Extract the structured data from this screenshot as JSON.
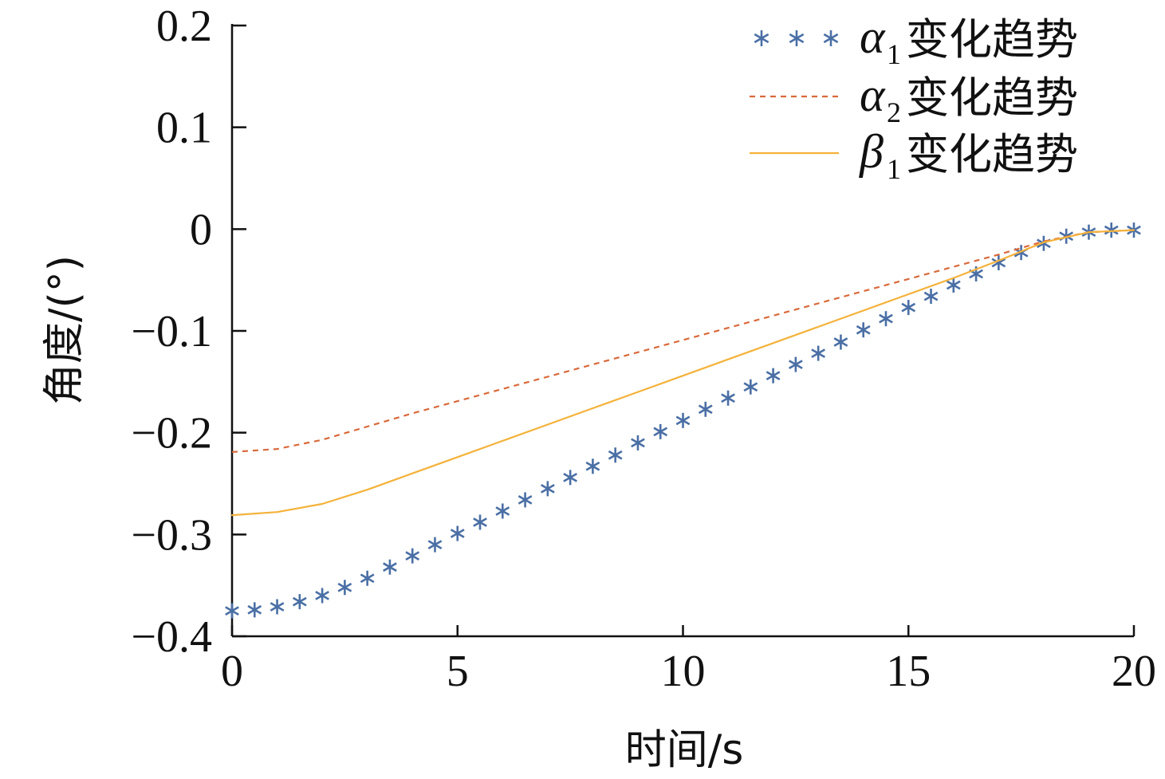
{
  "chart_data": {
    "type": "line",
    "xlabel": "时间/s",
    "ylabel": "角度/(°)",
    "xlim": [
      0,
      20
    ],
    "ylim": [
      -0.4,
      0.2
    ],
    "x_ticks": [
      "0",
      "5",
      "10",
      "15",
      "20"
    ],
    "y_ticks": [
      "0.2",
      "0.1",
      "0",
      "−0.1",
      "−0.2",
      "−0.3",
      "−0.4"
    ],
    "grid": false,
    "legend_position": "top-right",
    "series": [
      {
        "name": "α1变化趋势",
        "legend_symbol": "α",
        "legend_sub": "1",
        "legend_suffix": "变化趋势",
        "style": "markers-asterisk",
        "color": "#4a6fa5",
        "x": [
          0,
          0.5,
          1,
          1.5,
          2,
          2.5,
          3,
          3.5,
          4,
          4.5,
          5,
          5.5,
          6,
          6.5,
          7,
          7.5,
          8,
          8.5,
          9,
          9.5,
          10,
          10.5,
          11,
          11.5,
          12,
          12.5,
          13,
          13.5,
          14,
          14.5,
          15,
          15.5,
          16,
          16.5,
          17,
          17.5,
          18,
          18.5,
          19,
          19.5,
          20
        ],
        "y": [
          -0.375,
          -0.374,
          -0.371,
          -0.366,
          -0.36,
          -0.352,
          -0.343,
          -0.332,
          -0.321,
          -0.31,
          -0.299,
          -0.288,
          -0.277,
          -0.266,
          -0.255,
          -0.244,
          -0.233,
          -0.222,
          -0.21,
          -0.199,
          -0.188,
          -0.177,
          -0.166,
          -0.155,
          -0.144,
          -0.133,
          -0.122,
          -0.111,
          -0.099,
          -0.088,
          -0.077,
          -0.066,
          -0.055,
          -0.044,
          -0.033,
          -0.023,
          -0.014,
          -0.007,
          -0.003,
          -0.001,
          -0.001
        ]
      },
      {
        "name": "α2变化趋势",
        "legend_symbol": "α",
        "legend_sub": "2",
        "legend_suffix": "变化趋势",
        "style": "dashed",
        "color": "#d9693a",
        "x": [
          0,
          1,
          2,
          3,
          4,
          5,
          6,
          7,
          8,
          9,
          10,
          11,
          12,
          13,
          14,
          15,
          16,
          17,
          18,
          19,
          20
        ],
        "y": [
          -0.219,
          -0.216,
          -0.207,
          -0.194,
          -0.181,
          -0.169,
          -0.157,
          -0.145,
          -0.133,
          -0.121,
          -0.109,
          -0.097,
          -0.085,
          -0.073,
          -0.061,
          -0.049,
          -0.037,
          -0.025,
          -0.012,
          -0.003,
          -0.001
        ]
      },
      {
        "name": "β1变化趋势",
        "legend_symbol": "β",
        "legend_sub": "1",
        "legend_suffix": "变化趋势",
        "style": "solid",
        "color": "#f4b23a",
        "x": [
          0,
          1,
          2,
          3,
          4,
          5,
          6,
          7,
          8,
          9,
          10,
          11,
          12,
          13,
          14,
          15,
          16,
          17,
          18,
          19,
          20
        ],
        "y": [
          -0.281,
          -0.278,
          -0.27,
          -0.256,
          -0.24,
          -0.224,
          -0.208,
          -0.192,
          -0.176,
          -0.16,
          -0.144,
          -0.128,
          -0.112,
          -0.096,
          -0.08,
          -0.064,
          -0.048,
          -0.031,
          -0.013,
          -0.003,
          -0.001
        ]
      }
    ]
  }
}
